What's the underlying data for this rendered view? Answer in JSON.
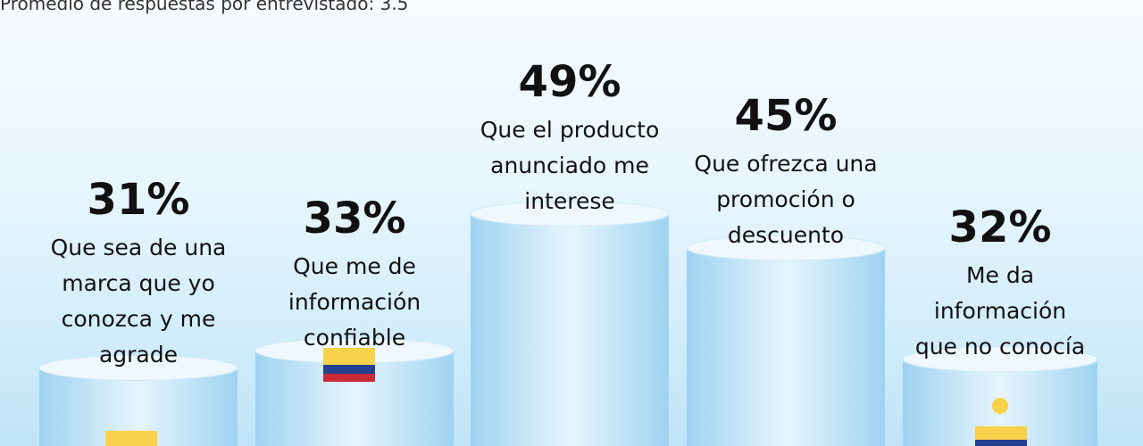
{
  "subtitle": "Promedio de respuestas por entrevistado: 3.5",
  "colors": {
    "cylinder": "#bfe3f7",
    "top": "#eef8fe",
    "yellow": "#f7d24a",
    "blue": "#233f8f",
    "red": "#c92a36"
  },
  "chart_data": {
    "type": "bar",
    "categories": [
      "Que sea de una marca que yo conozca y me agrade",
      "Que me de información confiable",
      "Que el producto anunciado me interese",
      "Que ofrezca una promoción o descuento",
      "Me da información que no conocía"
    ],
    "values": [
      31,
      33,
      49,
      45,
      32
    ],
    "value_labels": [
      "31%",
      "33%",
      "49%",
      "45%",
      "32%"
    ],
    "category_lines": [
      [
        "Que sea de una",
        "marca que yo",
        "conozca y me",
        "agrade"
      ],
      [
        "Que me de",
        "información",
        "confiable"
      ],
      [
        "Que el producto",
        "anunciado me",
        "interese"
      ],
      [
        "Que ofrezca una",
        "promoción o",
        "descuento"
      ],
      [
        "Me da",
        "información",
        "que no conocía"
      ]
    ]
  }
}
